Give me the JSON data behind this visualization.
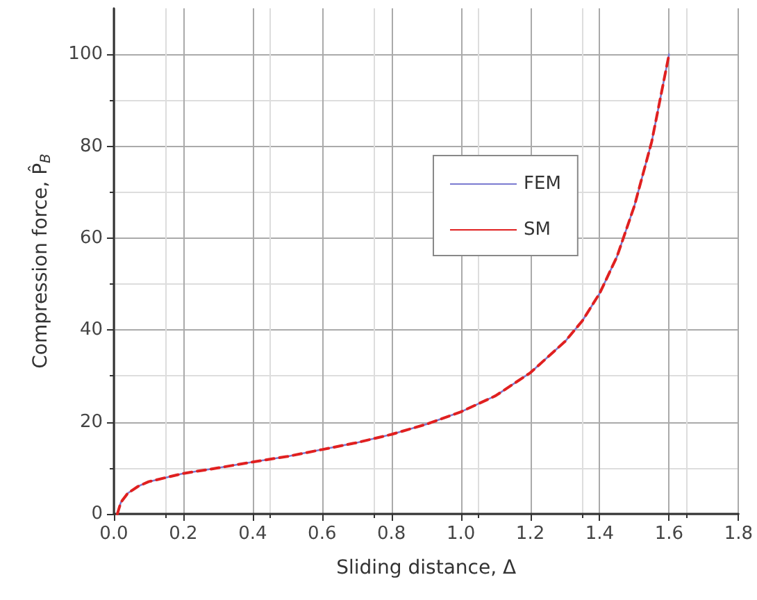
{
  "chart_data": {
    "type": "line",
    "xlabel": "Sliding distance, Δ",
    "ylabel": "Compression force, P̂$_{B}$",
    "xlim": [
      0,
      1.8
    ],
    "xticks": [
      {
        "value": 0,
        "label": "0.0"
      },
      0.2,
      0.4,
      0.6,
      0.8,
      {
        "value": 1,
        "label": "1.0"
      },
      1.2,
      1.4,
      1.6,
      1.8
    ],
    "ylim": [
      0,
      110
    ],
    "yticks": [
      0,
      20,
      40,
      60,
      80,
      100
    ],
    "grid": true,
    "legend": "right",
    "marker": "none",
    "series": [
      {
        "name": "FEM",
        "color": "#7a7ad0",
        "line_style": "solid",
        "x": [
          0.01,
          0.02,
          0.04,
          0.07,
          0.1,
          0.2,
          0.3,
          0.4,
          0.5,
          0.6,
          0.7,
          0.8,
          0.9,
          1.0,
          1.1,
          1.2,
          1.3,
          1.35,
          1.4,
          1.45,
          1.5,
          1.55,
          1.6
        ],
        "values": [
          0,
          2.5,
          4.5,
          6,
          7,
          8.8,
          10,
          11.3,
          12.5,
          14,
          15.5,
          17.3,
          19.5,
          22.2,
          25.7,
          30.7,
          37.5,
          42,
          48,
          56,
          67,
          81,
          100
        ]
      },
      {
        "name": "SM",
        "color": "#e02020",
        "line_style": "dashed",
        "x": [
          0.01,
          0.02,
          0.04,
          0.07,
          0.1,
          0.2,
          0.3,
          0.4,
          0.5,
          0.6,
          0.7,
          0.8,
          0.9,
          1.0,
          1.1,
          1.2,
          1.3,
          1.35,
          1.4,
          1.45,
          1.5,
          1.55,
          1.6
        ],
        "values": [
          0,
          2.5,
          4.5,
          6,
          7,
          8.8,
          10,
          11.3,
          12.5,
          14,
          15.5,
          17.3,
          19.5,
          22.2,
          25.7,
          30.7,
          37.5,
          42,
          48,
          56,
          67,
          81,
          100
        ]
      }
    ]
  }
}
